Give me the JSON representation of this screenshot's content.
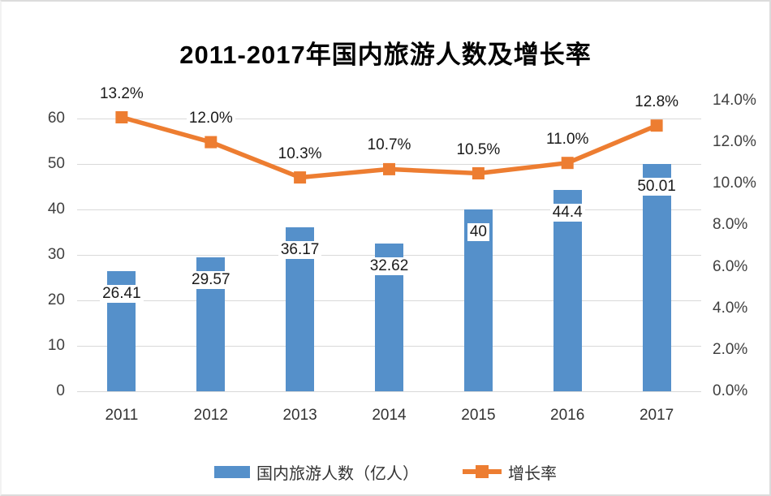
{
  "title": "2011-2017年国内旅游人数及增长率",
  "chart_data": {
    "type": "bar",
    "subtype": "combo-bar-line-dual-axis",
    "title": "2011-2017年国内旅游人数及增长率",
    "categories": [
      "2011",
      "2012",
      "2013",
      "2014",
      "2015",
      "2016",
      "2017"
    ],
    "series": [
      {
        "name": "国内旅游人数（亿人）",
        "type": "bar",
        "axis": "left",
        "values": [
          26.41,
          29.57,
          36.17,
          32.62,
          40,
          44.4,
          50.01
        ],
        "labels": [
          "26.41",
          "29.57",
          "36.17",
          "32.62",
          "40",
          "44.4",
          "50.01"
        ],
        "color": "#5590ca"
      },
      {
        "name": "增长率",
        "type": "line",
        "axis": "right",
        "values": [
          13.2,
          12.0,
          10.3,
          10.7,
          10.5,
          11.0,
          12.8
        ],
        "labels": [
          "13.2%",
          "12.0%",
          "10.3%",
          "10.7%",
          "10.5%",
          "11.0%",
          "12.8%"
        ],
        "color": "#ed7d31"
      }
    ],
    "left_axis": {
      "ticks": [
        0,
        10,
        20,
        30,
        40,
        50,
        60
      ],
      "tick_labels": [
        "0",
        "10",
        "20",
        "30",
        "40",
        "50",
        "60"
      ],
      "plot_max": 64
    },
    "right_axis": {
      "ticks": [
        0,
        2,
        4,
        6,
        8,
        10,
        12,
        14
      ],
      "tick_labels": [
        "0.0%",
        "2.0%",
        "4.0%",
        "6.0%",
        "8.0%",
        "10.0%",
        "12.0%",
        "14.0%"
      ],
      "plot_max": 14
    },
    "grid": true,
    "legend_position": "bottom",
    "gridline_color": "#d9d9d9",
    "label_text_color": "#1a1a1a"
  },
  "legend": {
    "items": [
      {
        "label": "国内旅游人数（亿人）",
        "marker": "bar-swatch",
        "color": "#5590ca"
      },
      {
        "label": "增长率",
        "marker": "line-square",
        "color": "#ed7d31"
      }
    ]
  }
}
